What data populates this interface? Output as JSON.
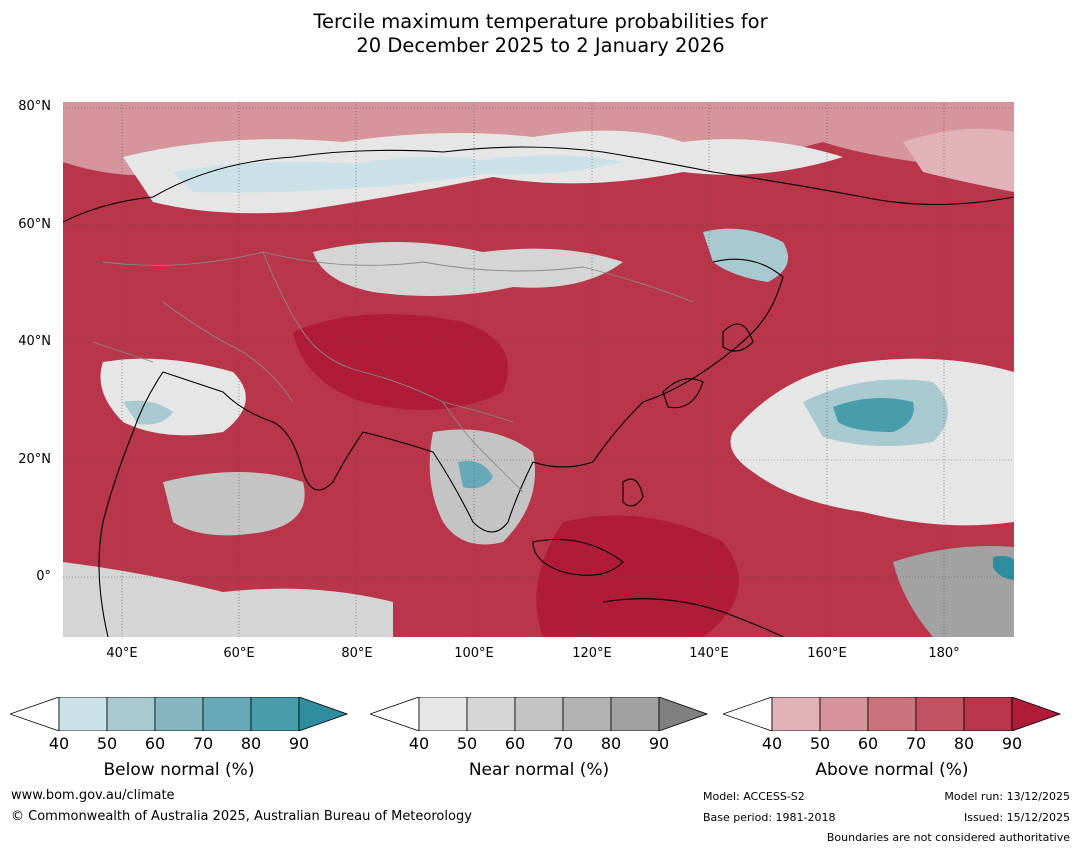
{
  "title": {
    "line1": "Tercile maximum temperature probabilities for",
    "line2": "20 December 2025 to 2 January 2026"
  },
  "map": {
    "latitude_labels": [
      "80°N",
      "60°N",
      "40°N",
      "20°N",
      "0°"
    ],
    "longitude_labels": [
      "40°E",
      "60°E",
      "80°E",
      "100°E",
      "120°E",
      "140°E",
      "160°E",
      "180°"
    ]
  },
  "colorbars": {
    "below": {
      "title": "Below normal (%)",
      "ticks": [
        "40",
        "50",
        "60",
        "70",
        "80",
        "90"
      ],
      "colors": [
        "#ffffff",
        "#c9e1e7",
        "#a8c9d0",
        "#86b6c0",
        "#67a9b6",
        "#489dab",
        "#2e8ea0"
      ]
    },
    "near": {
      "title": "Near normal (%)",
      "ticks": [
        "40",
        "50",
        "60",
        "70",
        "80",
        "90"
      ],
      "colors": [
        "#ffffff",
        "#e6e6e6",
        "#d5d5d5",
        "#c4c4c4",
        "#b3b3b3",
        "#a2a2a2",
        "#808080"
      ]
    },
    "above": {
      "title": "Above normal (%)",
      "ticks": [
        "40",
        "50",
        "60",
        "70",
        "80",
        "90"
      ],
      "colors": [
        "#ffffff",
        "#e1b3b9",
        "#d6949c",
        "#cb727d",
        "#c15363",
        "#b8354a",
        "#b01c38"
      ]
    }
  },
  "footer": {
    "website": "www.bom.gov.au/climate",
    "copyright": "© Commonwealth of Australia 2025, Australian Bureau of Meteorology",
    "model": "Model: ACCESS-S2",
    "base_period": "Base period: 1981-2018",
    "model_run": "Model run: 13/12/2025",
    "issued": "Issued: 15/12/2025",
    "disclaimer": "Boundaries are not considered authoritative"
  }
}
